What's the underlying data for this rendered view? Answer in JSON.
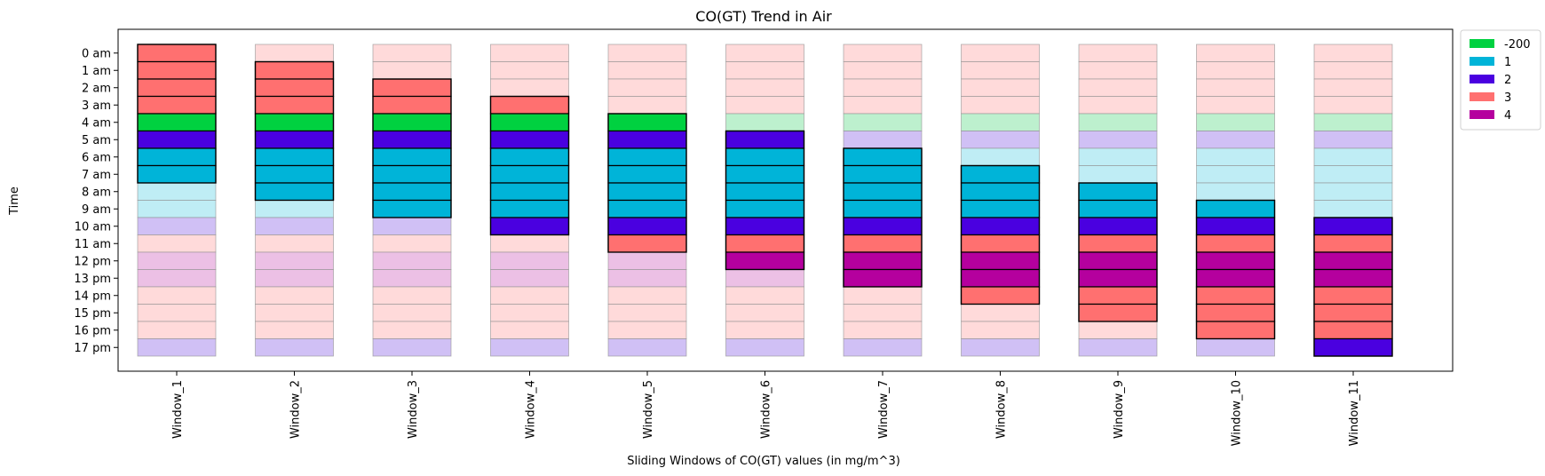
{
  "chart_data": {
    "type": "heatmap",
    "title": "CO(GT) Trend in Air",
    "xlabel": "Sliding Windows of CO(GT) values (in mg/m^3)",
    "ylabel": "Time",
    "categories": [
      "Window_1",
      "Window_2",
      "Window_3",
      "Window_4",
      "Window_5",
      "Window_6",
      "Window_7",
      "Window_8",
      "Window_9",
      "Window_10",
      "Window_11"
    ],
    "times": [
      "0 am",
      "1 am",
      "2 am",
      "3 am",
      "4 am",
      "5 am",
      "6 am",
      "7 am",
      "8 am",
      "9 am",
      "10 am",
      "11 am",
      "12 pm",
      "13 pm",
      "14 pm",
      "15 pm",
      "16 pm",
      "17 pm"
    ],
    "hour_values": [
      3,
      3,
      3,
      3,
      -200,
      2,
      1,
      1,
      1,
      1,
      2,
      3,
      4,
      4,
      3,
      3,
      3,
      2
    ],
    "windows": [
      {
        "name": "Window_1",
        "start_hour": 0,
        "end_hour": 7
      },
      {
        "name": "Window_2",
        "start_hour": 1,
        "end_hour": 8
      },
      {
        "name": "Window_3",
        "start_hour": 2,
        "end_hour": 9
      },
      {
        "name": "Window_4",
        "start_hour": 3,
        "end_hour": 10
      },
      {
        "name": "Window_5",
        "start_hour": 4,
        "end_hour": 11
      },
      {
        "name": "Window_6",
        "start_hour": 5,
        "end_hour": 12
      },
      {
        "name": "Window_7",
        "start_hour": 6,
        "end_hour": 13
      },
      {
        "name": "Window_8",
        "start_hour": 7,
        "end_hour": 14
      },
      {
        "name": "Window_9",
        "start_hour": 8,
        "end_hour": 15
      },
      {
        "name": "Window_10",
        "start_hour": 9,
        "end_hour": 16
      },
      {
        "name": "Window_11",
        "start_hour": 10,
        "end_hour": 17
      }
    ],
    "legend": [
      {
        "label": "-200",
        "value": -200,
        "color": "#00d140",
        "light_color": "#bdf0ce"
      },
      {
        "label": "1",
        "value": 1,
        "color": "#00b4d8",
        "light_color": "#bfedf5"
      },
      {
        "label": "2",
        "value": 2,
        "color": "#4a00e0",
        "light_color": "#d0c0f5"
      },
      {
        "label": "3",
        "value": 3,
        "color": "#ff7070",
        "light_color": "#ffdada"
      },
      {
        "label": "4",
        "value": 4,
        "color": "#b5009e",
        "light_color": "#ecc0e5"
      }
    ],
    "legend_placement": "outside-top-right",
    "grid": false
  }
}
